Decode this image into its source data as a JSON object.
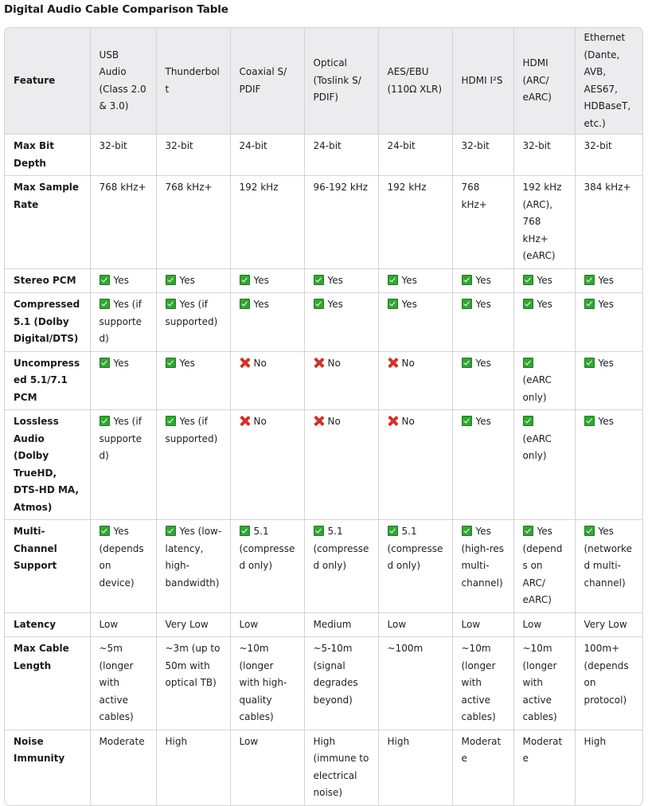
{
  "title": "Digital Audio Cable Comparison Table",
  "table": {
    "headers": [
      "Feature",
      "USB Audio (Class 2.0 & 3.0)",
      "Thunderbolt",
      "Coaxial S/ PDIF",
      "Optical (Toslink S/ PDIF)",
      "AES/EBU (110Ω XLR)",
      "HDMI I²S",
      "HDMI (ARC/ eARC)",
      "Ethernet (Dante, AVB, AES67, HDBaseT, etc.)"
    ],
    "rows": [
      {
        "feature": "Max Bit Depth",
        "cells": [
          {
            "icon": "",
            "text": "32-bit"
          },
          {
            "icon": "",
            "text": "32-bit"
          },
          {
            "icon": "",
            "text": "24-bit"
          },
          {
            "icon": "",
            "text": "24-bit"
          },
          {
            "icon": "",
            "text": "24-bit"
          },
          {
            "icon": "",
            "text": "32-bit"
          },
          {
            "icon": "",
            "text": "32-bit"
          },
          {
            "icon": "",
            "text": "32-bit"
          }
        ]
      },
      {
        "feature": "Max Sample Rate",
        "cells": [
          {
            "icon": "",
            "text": "768 kHz+"
          },
          {
            "icon": "",
            "text": "768 kHz+"
          },
          {
            "icon": "",
            "text": "192 kHz"
          },
          {
            "icon": "",
            "text": "96-192 kHz"
          },
          {
            "icon": "",
            "text": "192 kHz"
          },
          {
            "icon": "",
            "text": "768 kHz+"
          },
          {
            "icon": "",
            "text": "192 kHz (ARC), 768 kHz+ (eARC)"
          },
          {
            "icon": "",
            "text": "384 kHz+"
          }
        ]
      },
      {
        "feature": "Stereo PCM",
        "cells": [
          {
            "icon": "check",
            "text": "Yes"
          },
          {
            "icon": "check",
            "text": "Yes"
          },
          {
            "icon": "check",
            "text": "Yes"
          },
          {
            "icon": "check",
            "text": "Yes"
          },
          {
            "icon": "check",
            "text": "Yes"
          },
          {
            "icon": "check",
            "text": "Yes"
          },
          {
            "icon": "check",
            "text": "Yes"
          },
          {
            "icon": "check",
            "text": "Yes"
          }
        ]
      },
      {
        "feature": "Compressed 5.1 (Dolby Digital/DTS)",
        "cells": [
          {
            "icon": "check",
            "text": "Yes (if supported)"
          },
          {
            "icon": "check",
            "text": "Yes (if supported)"
          },
          {
            "icon": "check",
            "text": "Yes"
          },
          {
            "icon": "check",
            "text": "Yes"
          },
          {
            "icon": "check",
            "text": "Yes"
          },
          {
            "icon": "check",
            "text": "Yes"
          },
          {
            "icon": "check",
            "text": "Yes"
          },
          {
            "icon": "check",
            "text": "Yes"
          }
        ]
      },
      {
        "feature": "Uncompressed 5.1/7.1 PCM",
        "cells": [
          {
            "icon": "check",
            "text": "Yes"
          },
          {
            "icon": "check",
            "text": "Yes"
          },
          {
            "icon": "cross",
            "text": "No"
          },
          {
            "icon": "cross",
            "text": "No"
          },
          {
            "icon": "cross",
            "text": "No"
          },
          {
            "icon": "check",
            "text": "Yes"
          },
          {
            "icon": "check",
            "text": "(eARC only)",
            "break": true
          },
          {
            "icon": "check",
            "text": "Yes"
          }
        ]
      },
      {
        "feature": "Lossless Audio (Dolby TrueHD, DTS-HD MA, Atmos)",
        "cells": [
          {
            "icon": "check",
            "text": "Yes (if supported)"
          },
          {
            "icon": "check",
            "text": "Yes (if supported)"
          },
          {
            "icon": "cross",
            "text": "No"
          },
          {
            "icon": "cross",
            "text": "No"
          },
          {
            "icon": "cross",
            "text": "No"
          },
          {
            "icon": "check",
            "text": "Yes"
          },
          {
            "icon": "check",
            "text": "(eARC only)",
            "break": true
          },
          {
            "icon": "check",
            "text": "Yes"
          }
        ]
      },
      {
        "feature": "Multi-Channel Support",
        "cells": [
          {
            "icon": "check",
            "text": "Yes (depends on device)"
          },
          {
            "icon": "check",
            "text": "Yes (low-latency, high-bandwidth)"
          },
          {
            "icon": "check",
            "text": "5.1 (compressed only)"
          },
          {
            "icon": "check",
            "text": "5.1 (compressed only)"
          },
          {
            "icon": "check",
            "text": "5.1 (compressed only)"
          },
          {
            "icon": "check",
            "text": "Yes (high-res multi-channel)"
          },
          {
            "icon": "check",
            "text": "Yes (depends on ARC/ eARC)"
          },
          {
            "icon": "check",
            "text": "Yes (networked multi-channel)"
          }
        ]
      },
      {
        "feature": "Latency",
        "cells": [
          {
            "icon": "",
            "text": "Low"
          },
          {
            "icon": "",
            "text": "Very Low"
          },
          {
            "icon": "",
            "text": "Low"
          },
          {
            "icon": "",
            "text": "Medium"
          },
          {
            "icon": "",
            "text": "Low"
          },
          {
            "icon": "",
            "text": "Low"
          },
          {
            "icon": "",
            "text": "Low"
          },
          {
            "icon": "",
            "text": "Very Low"
          }
        ]
      },
      {
        "feature": "Max Cable Length",
        "cells": [
          {
            "icon": "",
            "text": "~5m (longer with active cables)"
          },
          {
            "icon": "",
            "text": "~3m (up to 50m with optical TB)"
          },
          {
            "icon": "",
            "text": "~10m (longer with high-quality cables)"
          },
          {
            "icon": "",
            "text": "~5-10m (signal degrades beyond)"
          },
          {
            "icon": "",
            "text": "~100m"
          },
          {
            "icon": "",
            "text": "~10m (longer with active cables)"
          },
          {
            "icon": "",
            "text": "~10m (longer with active cables)"
          },
          {
            "icon": "",
            "text": "100m+ (depends on protocol)"
          }
        ]
      },
      {
        "feature": "Noise Immunity",
        "cells": [
          {
            "icon": "",
            "text": "Moderate"
          },
          {
            "icon": "",
            "text": "High"
          },
          {
            "icon": "",
            "text": "Low"
          },
          {
            "icon": "",
            "text": "High (immune to electrical noise)"
          },
          {
            "icon": "",
            "text": "High"
          },
          {
            "icon": "",
            "text": "Moderate"
          },
          {
            "icon": "",
            "text": "Moderate"
          },
          {
            "icon": "",
            "text": "High"
          }
        ]
      }
    ]
  },
  "colors": {
    "header_bg": "#ececee",
    "border": "#d4d4d8",
    "check_green": "#34a534",
    "cross_red": "#d0332a"
  }
}
